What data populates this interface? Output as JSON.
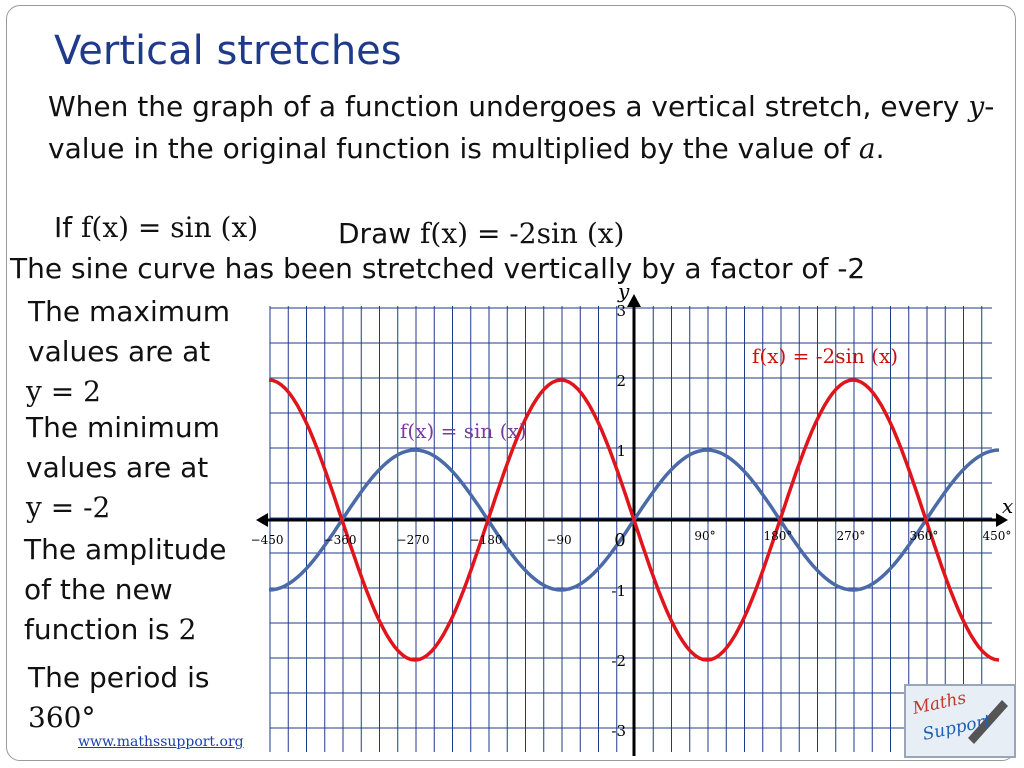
{
  "slide": {
    "title": "Vertical stretches",
    "intro_part1": "When the graph of a function undergoes a vertical stretch, every ",
    "intro_var": "y",
    "intro_part2": "-value in the original function is multiplied by the value of ",
    "intro_a": "a",
    "intro_end": ".",
    "if_word": "If",
    "if_func": "f(x) = sin (x)",
    "draw_word": "Draw",
    "draw_func": "f(x) = -2sin (x)",
    "stretch_note": "The sine curve has been stretched vertically by a factor of -2",
    "max_text": "The maximum values are at",
    "max_value": "y = 2",
    "min_text": "The minimum values are at",
    "min_value": "y = -2",
    "amp_text": "The amplitude of the new function is",
    "amp_value": "2",
    "period_text": "The period is",
    "period_value": "360°",
    "footer_url": "www.mathssupport.org",
    "logo_text_1": "Maths",
    "logo_text_2": "Support"
  },
  "colors": {
    "title": "#1f3a8a",
    "grid": "#1f3a8a",
    "sine": "#4a6aa8",
    "stretched": "#e0151c",
    "sine_label": "#7a3aa0",
    "stretched_label": "#cc1010"
  },
  "chart_data": {
    "type": "line",
    "xlabel": "x",
    "ylabel": "y",
    "xlim": [
      -450,
      450
    ],
    "ylim": [
      -3,
      3
    ],
    "grid": true,
    "x_tick_labels": [
      {
        "x": -450,
        "label": "−450"
      },
      {
        "x": -360,
        "label": "−360"
      },
      {
        "x": -270,
        "label": "−270"
      },
      {
        "x": -180,
        "label": "−180"
      },
      {
        "x": -90,
        "label": "−90"
      },
      {
        "x": 0,
        "label": "0"
      },
      {
        "x": 90,
        "label": "90°"
      },
      {
        "x": 180,
        "label": "180°"
      },
      {
        "x": 270,
        "label": "270°"
      },
      {
        "x": 360,
        "label": "360°"
      },
      {
        "x": 450,
        "label": "450°"
      }
    ],
    "y_tick_labels": [
      {
        "y": 3,
        "label": "3"
      },
      {
        "y": 2,
        "label": "2"
      },
      {
        "y": 1,
        "label": "1"
      },
      {
        "y": -1,
        "label": "-1"
      },
      {
        "y": -2,
        "label": "-2"
      },
      {
        "y": -3,
        "label": "-3"
      }
    ],
    "series": [
      {
        "name": "f(x) = sin (x)",
        "amplitude": 1,
        "x": [
          -450,
          -360,
          -270,
          -180,
          -90,
          0,
          90,
          180,
          270,
          360,
          450
        ],
        "y": [
          -1,
          0,
          1,
          0,
          -1,
          0,
          1,
          0,
          -1,
          0,
          1
        ]
      },
      {
        "name": "f(x) = -2sin (x)",
        "amplitude": -2,
        "x": [
          -450,
          -360,
          -270,
          -180,
          -90,
          0,
          90,
          180,
          270,
          360,
          450
        ],
        "y": [
          2,
          0,
          -2,
          0,
          2,
          0,
          -2,
          0,
          2,
          0,
          -2
        ]
      }
    ]
  }
}
